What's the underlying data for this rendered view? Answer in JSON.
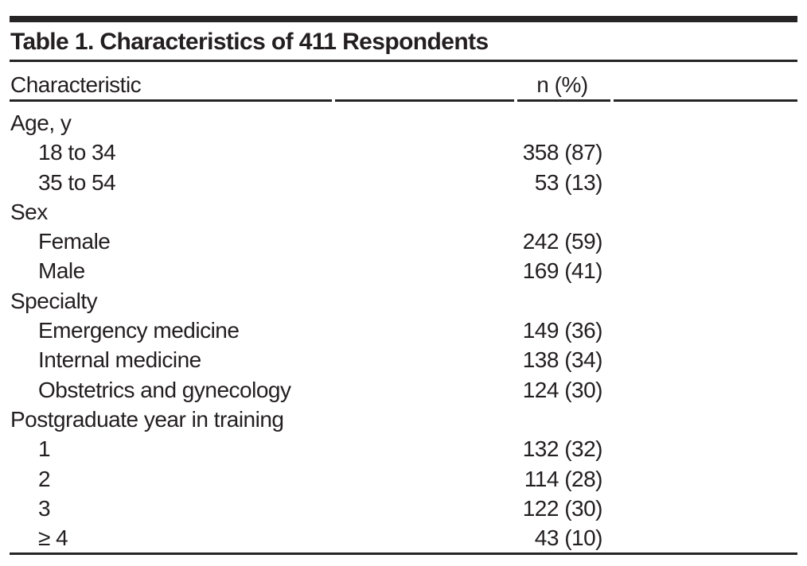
{
  "table": {
    "title": "Table 1. Characteristics of 411 Respondents",
    "columns": [
      "Characteristic",
      "n (%)"
    ],
    "rows": [
      {
        "label": "Age, y",
        "value": "",
        "indent": 0
      },
      {
        "label": "18 to 34",
        "value": "358 (87)",
        "indent": 1
      },
      {
        "label": "35 to 54",
        "value": "53 (13)",
        "indent": 1
      },
      {
        "label": "Sex",
        "value": "",
        "indent": 0
      },
      {
        "label": "Female",
        "value": "242 (59)",
        "indent": 1
      },
      {
        "label": "Male",
        "value": "169 (41)",
        "indent": 1
      },
      {
        "label": "Specialty",
        "value": "",
        "indent": 0
      },
      {
        "label": "Emergency medicine",
        "value": "149 (36)",
        "indent": 1
      },
      {
        "label": "Internal medicine",
        "value": "138 (34)",
        "indent": 1
      },
      {
        "label": "Obstetrics and gynecology",
        "value": "124 (30)",
        "indent": 1
      },
      {
        "label": "Postgraduate year in training",
        "value": "",
        "indent": 0
      },
      {
        "label": "1",
        "value": "132 (32)",
        "indent": 1
      },
      {
        "label": "2",
        "value": "114 (28)",
        "indent": 1
      },
      {
        "label": "3",
        "value": "122 (30)",
        "indent": 1
      },
      {
        "label": "≥ 4",
        "value": "43 (10)",
        "indent": 1
      }
    ],
    "colors": {
      "text": "#231f20",
      "rule": "#262424",
      "background": "#ffffff"
    }
  }
}
